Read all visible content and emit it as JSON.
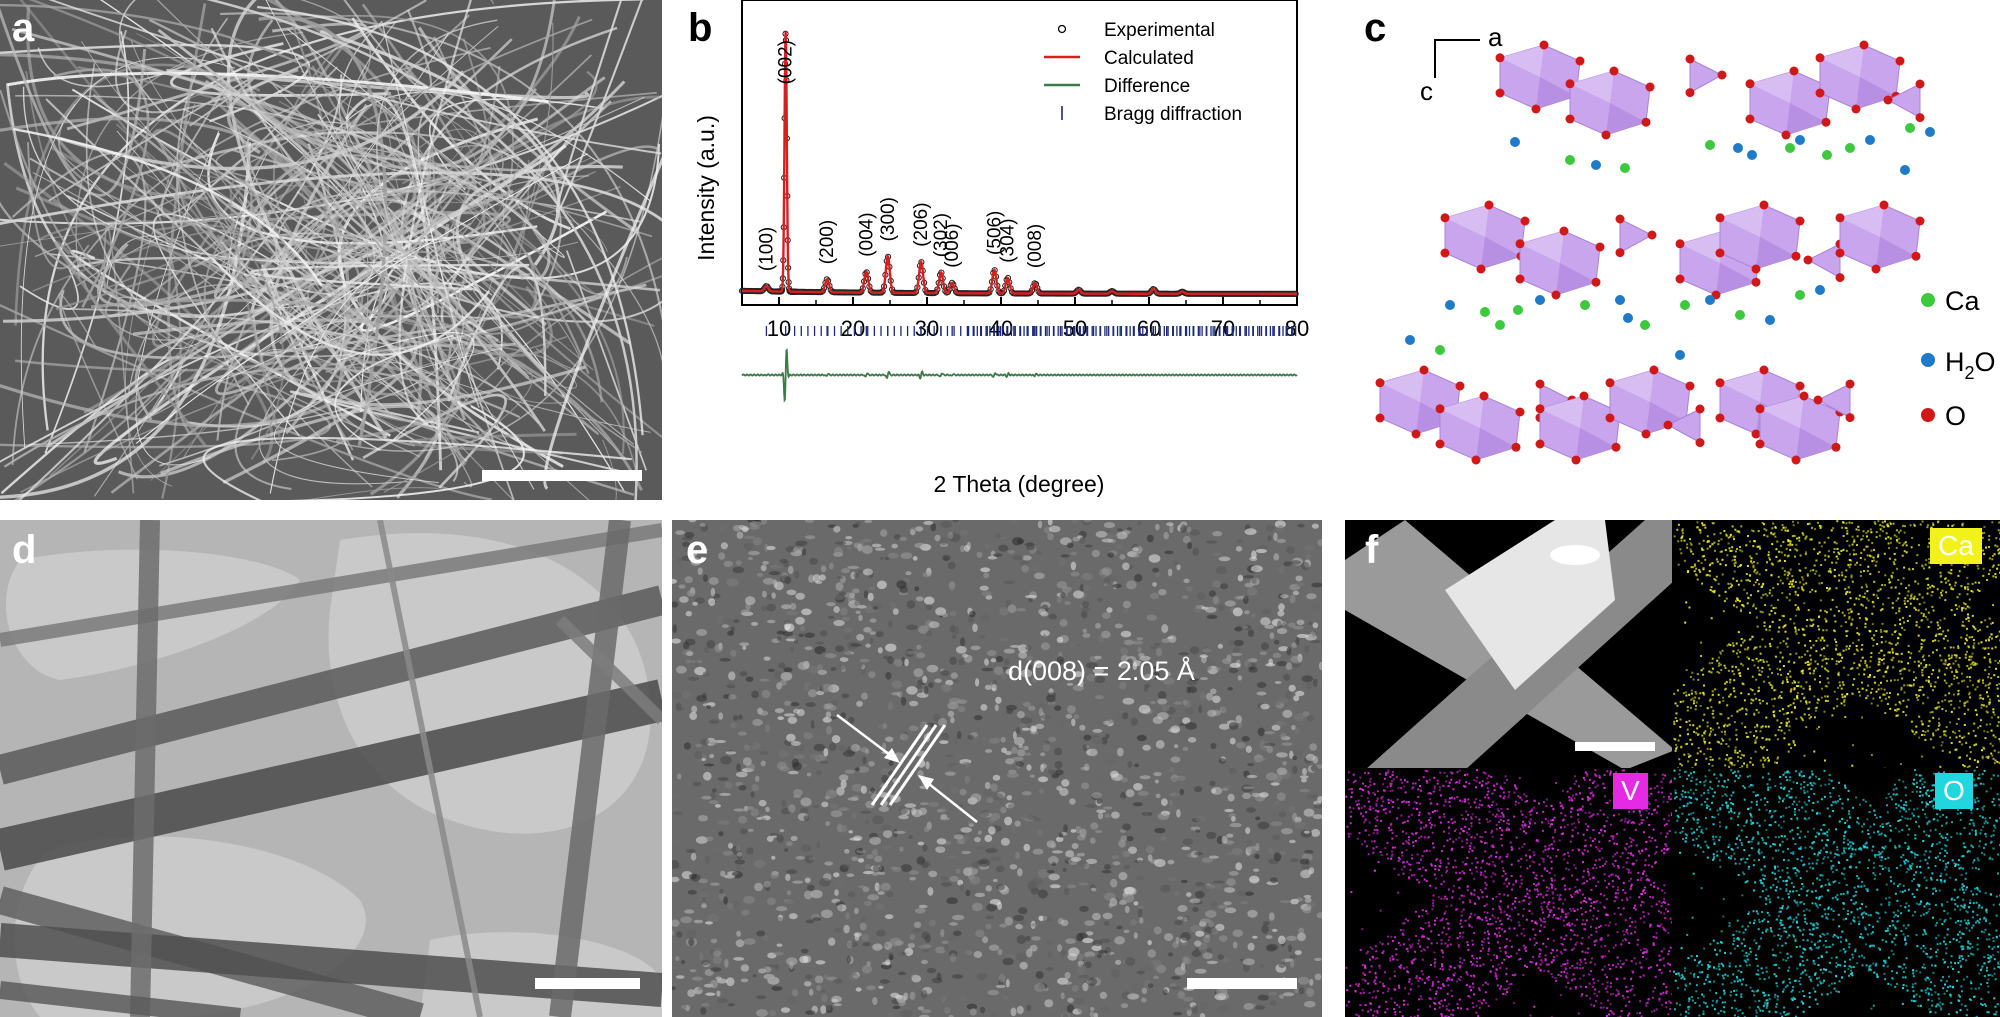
{
  "panels": {
    "a": {
      "label": "a"
    },
    "b": {
      "label": "b"
    },
    "c": {
      "label": "c"
    },
    "d": {
      "label": "d"
    },
    "e": {
      "label": "e",
      "annotation": "d(008) = 2.05 Å"
    },
    "f": {
      "label": "f",
      "maps": [
        {
          "element": "Ca",
          "color": "#e8e82a"
        },
        {
          "element": "V",
          "color": "#e32ee3"
        },
        {
          "element": "O",
          "color": "#23d8e0"
        }
      ]
    }
  },
  "chart_data": {
    "type": "line",
    "xlabel": "2 Theta (degree)",
    "ylabel": "Intensity (a.u.)",
    "xlim": [
      5,
      80
    ],
    "xticks": [
      10,
      20,
      30,
      40,
      50,
      60,
      70,
      80
    ],
    "legend": {
      "placement": "top-right",
      "entries": [
        {
          "name": "Experimental",
          "marker": "open-circle",
          "color": "#000000"
        },
        {
          "name": "Calculated",
          "marker": "line",
          "color": "#d62020"
        },
        {
          "name": "Difference",
          "marker": "line",
          "color": "#3c7a46"
        },
        {
          "name": "Bragg diffraction",
          "marker": "tick",
          "color": "#1c2a7a"
        }
      ]
    },
    "peaks": [
      {
        "hkl": "(100)",
        "x": 8.3,
        "rel_intensity": 0.02
      },
      {
        "hkl": "(002)",
        "x": 10.9,
        "rel_intensity": 1.0
      },
      {
        "hkl": "(200)",
        "x": 16.5,
        "rel_intensity": 0.05
      },
      {
        "hkl": "(004)",
        "x": 21.8,
        "rel_intensity": 0.08
      },
      {
        "hkl": "(300)",
        "x": 24.7,
        "rel_intensity": 0.14
      },
      {
        "hkl": "(206)",
        "x": 29.2,
        "rel_intensity": 0.12
      },
      {
        "hkl": "(302)",
        "x": 31.9,
        "rel_intensity": 0.08
      },
      {
        "hkl": "(006)",
        "x": 33.4,
        "rel_intensity": 0.04
      },
      {
        "hkl": "(506)",
        "x": 39.1,
        "rel_intensity": 0.09
      },
      {
        "hkl": "(304)",
        "x": 40.9,
        "rel_intensity": 0.06
      },
      {
        "hkl": "(008)",
        "x": 44.6,
        "rel_intensity": 0.04
      }
    ],
    "minor_peaks": [
      {
        "x": 50.5,
        "rel_intensity": 0.015
      },
      {
        "x": 55.0,
        "rel_intensity": 0.01
      },
      {
        "x": 60.6,
        "rel_intensity": 0.018
      },
      {
        "x": 64.5,
        "rel_intensity": 0.008
      }
    ]
  },
  "structure_legend": [
    {
      "label": "Ca",
      "color": "#3ec83e"
    },
    {
      "label": "H",
      "sub": "2",
      "tail": "O",
      "color": "#1f7ac8"
    },
    {
      "label": "O",
      "color": "#d01818"
    }
  ],
  "axes_labels": {
    "a": "a",
    "c": "c"
  }
}
